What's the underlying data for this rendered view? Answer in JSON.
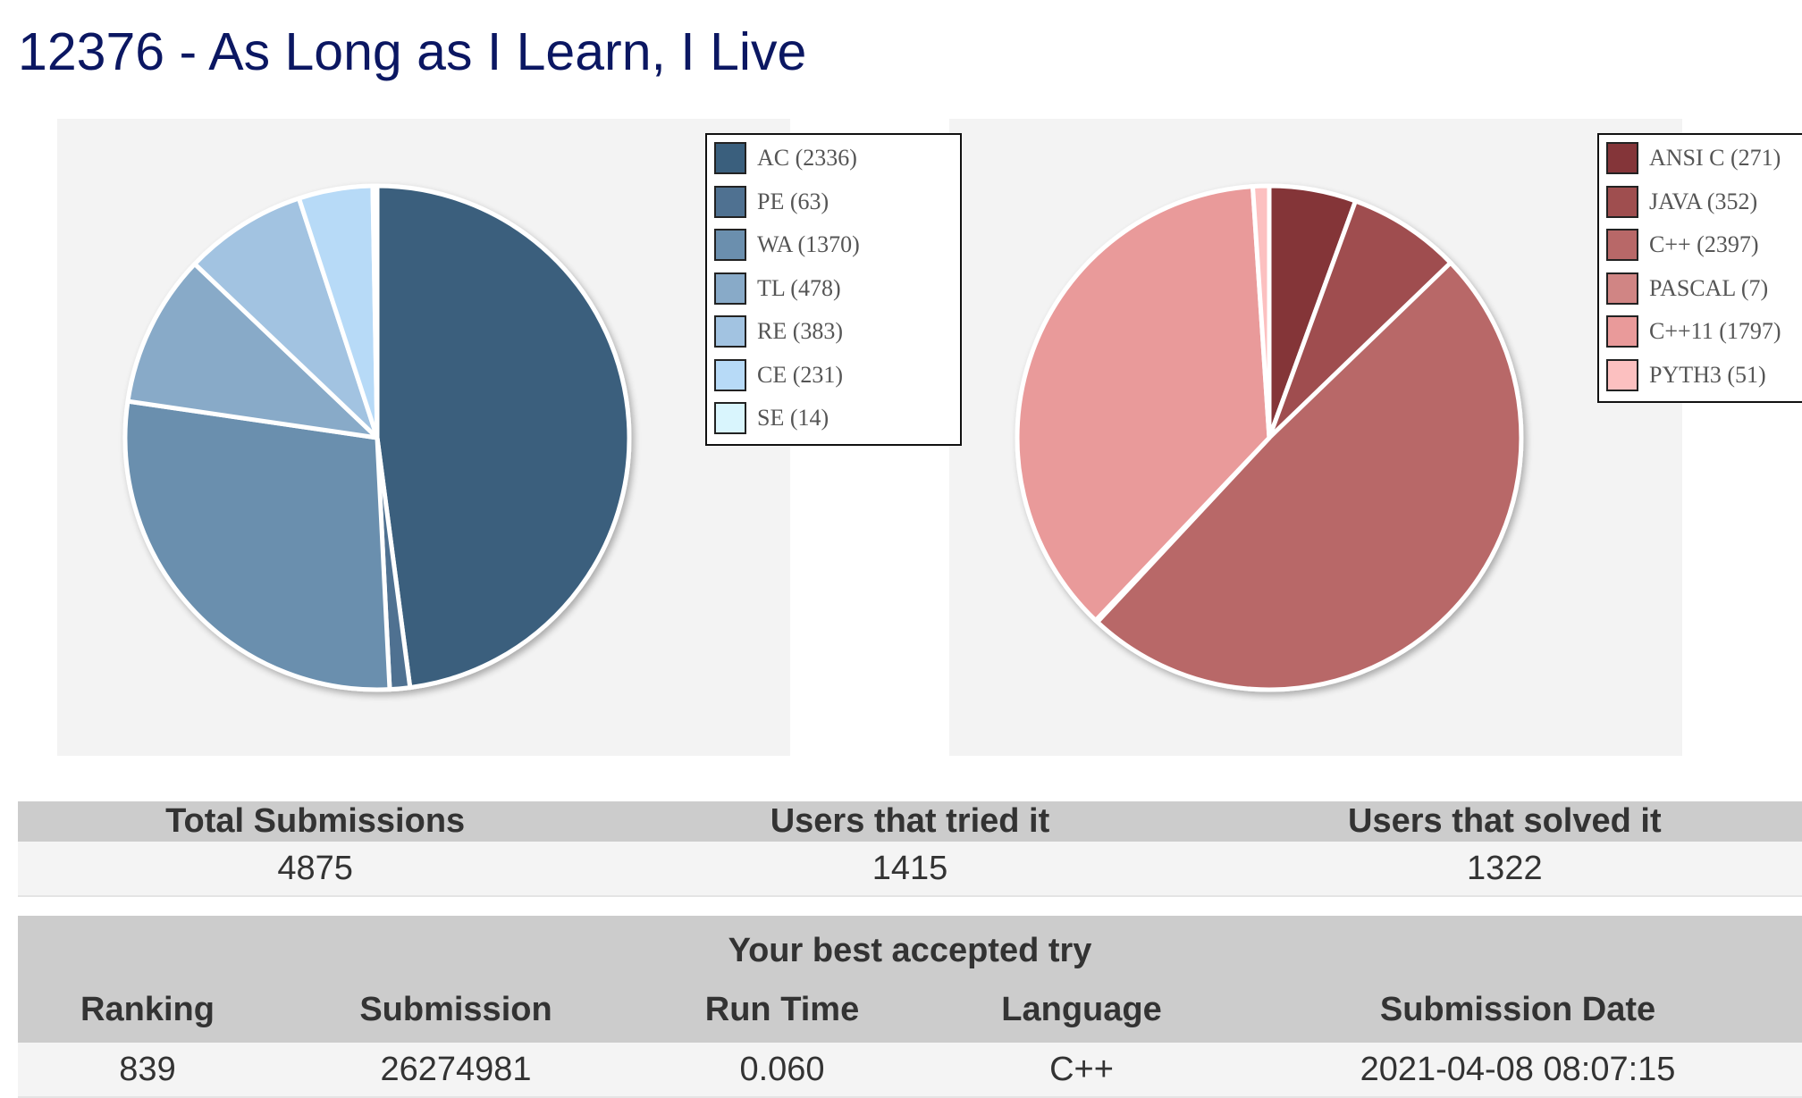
{
  "page_title": "12376 - As Long as I Learn, I Live",
  "chart_data": [
    {
      "type": "pie",
      "slices": [
        {
          "label": "AC (2336)",
          "value": 2336,
          "color": "#3a5f7d"
        },
        {
          "label": "PE (63)",
          "value": 63,
          "color": "#4f7191"
        },
        {
          "label": "WA (1370)",
          "value": 1370,
          "color": "#6b8fae"
        },
        {
          "label": "TL (478)",
          "value": 478,
          "color": "#88aac8"
        },
        {
          "label": "RE (383)",
          "value": 383,
          "color": "#a2c3e1"
        },
        {
          "label": "CE (231)",
          "value": 231,
          "color": "#b7daf7"
        },
        {
          "label": "SE (14)",
          "value": 14,
          "color": "#d9f5fd"
        }
      ],
      "legend_position": "top-right"
    },
    {
      "type": "pie",
      "slices": [
        {
          "label": "ANSI C (271)",
          "value": 271,
          "color": "#843539"
        },
        {
          "label": "JAVA (352)",
          "value": 352,
          "color": "#9f4e4f"
        },
        {
          "label": "C++ (2397)",
          "value": 2397,
          "color": "#b86868"
        },
        {
          "label": "PASCAL (7)",
          "value": 7,
          "color": "#d08584"
        },
        {
          "label": "C++11 (1797)",
          "value": 1797,
          "color": "#e99a9a"
        },
        {
          "label": "PYTH3 (51)",
          "value": 51,
          "color": "#fcc0c0"
        }
      ],
      "legend_position": "top-right"
    }
  ],
  "summary": {
    "headers": [
      "Total Submissions",
      "Users that tried it",
      "Users that solved it"
    ],
    "values": [
      "4875",
      "1415",
      "1322"
    ]
  },
  "best_try": {
    "caption": "Your best accepted try",
    "headers": [
      "Ranking",
      "Submission",
      "Run Time",
      "Language",
      "Submission Date"
    ],
    "values": [
      "839",
      "26274981",
      "0.060",
      "C++",
      "2021-04-08 08:07:15"
    ]
  }
}
